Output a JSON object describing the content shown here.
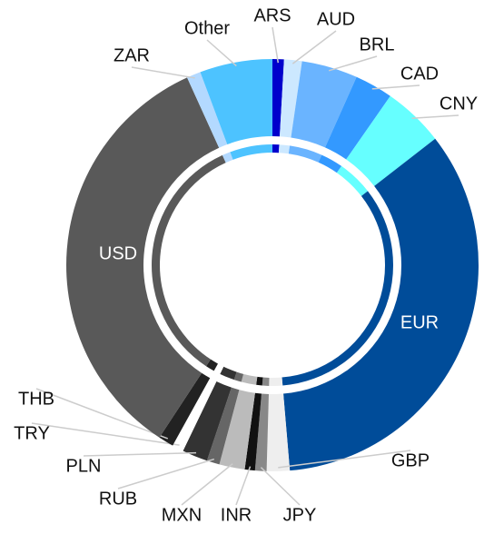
{
  "chart_data": {
    "type": "donut",
    "categories": [
      "ARS",
      "AUD",
      "BRL",
      "CAD",
      "CNY",
      "EUR",
      "GBP",
      "JPY",
      "INR",
      "MXN",
      "RUB",
      "PLN",
      "TRY",
      "THB",
      "USD",
      "ZAR",
      "Other"
    ],
    "values": [
      0.9,
      1.4,
      4.4,
      3.0,
      4.8,
      34.2,
      1.8,
      0.9,
      0.8,
      2.0,
      1.0,
      2.0,
      0.9,
      1.2,
      34.0,
      1.1,
      5.7
    ],
    "colors": [
      "#0000cc",
      "#cce8ff",
      "#6ab4ff",
      "#3399ff",
      "#66ffff",
      "#004c99",
      "#eeeeee",
      "#888888",
      "#111111",
      "#bbbbbb",
      "#666666",
      "#333333",
      "#ffffff",
      "#222222",
      "#595959",
      "#b3d9ff",
      "#4dc3ff"
    ]
  }
}
